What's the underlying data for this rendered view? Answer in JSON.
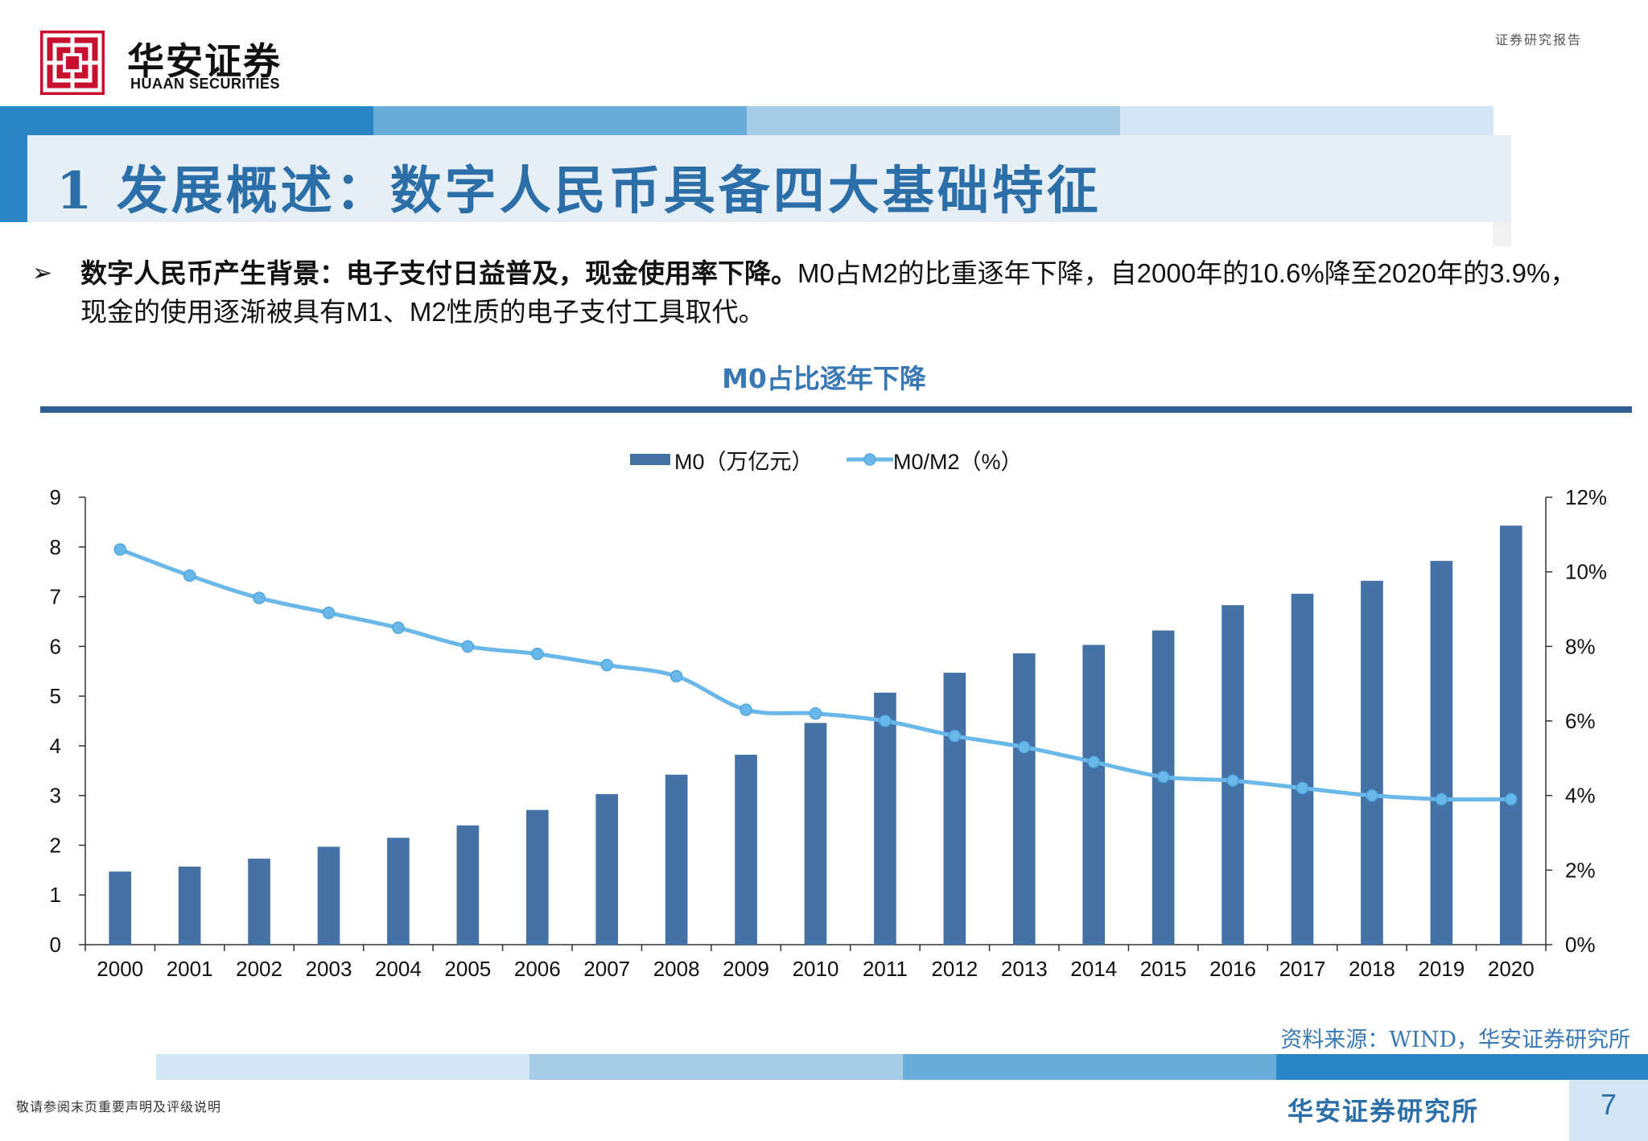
{
  "header": {
    "brand_cn": "华安证券",
    "brand_en": "HUAAN SECURITIES",
    "report_type": "证券研究报告",
    "logo_color": "#c8102e"
  },
  "slide": {
    "title": "1 发展概述：数字人民币具备四大基础特征",
    "bullet_bold": "数字人民币产生背景：电子支付日益普及，现金使用率下降。",
    "bullet_text": "M0占M2的比重逐年下降，自2000年的10.6%降至2020年的3.9%，现金的使用逐渐被具有M1、M2性质的电子支付工具取代。"
  },
  "chart_title": "M0占比逐年下降",
  "chart_data": {
    "type": "bar+line",
    "categories": [
      "2000",
      "2001",
      "2002",
      "2003",
      "2004",
      "2005",
      "2006",
      "2007",
      "2008",
      "2009",
      "2010",
      "2011",
      "2012",
      "2013",
      "2014",
      "2015",
      "2016",
      "2017",
      "2018",
      "2019",
      "2020"
    ],
    "series": [
      {
        "name": "M0（万亿元）",
        "type": "bar",
        "axis": "left",
        "color": "#4472a6",
        "values": [
          1.47,
          1.57,
          1.73,
          1.97,
          2.15,
          2.4,
          2.71,
          3.03,
          3.42,
          3.82,
          4.46,
          5.07,
          5.47,
          5.86,
          6.03,
          6.32,
          6.83,
          7.06,
          7.32,
          7.72,
          8.43
        ]
      },
      {
        "name": "M0/M2（%）",
        "type": "line",
        "axis": "right",
        "color": "#6ab8ea",
        "values": [
          10.6,
          9.9,
          9.3,
          8.9,
          8.5,
          8.0,
          7.8,
          7.5,
          7.2,
          6.3,
          6.2,
          6.0,
          5.6,
          5.3,
          4.9,
          4.5,
          4.4,
          4.2,
          4.0,
          3.9,
          3.9
        ]
      }
    ],
    "y_left": {
      "min": 0,
      "max": 9,
      "ticks": [
        "0",
        "1",
        "2",
        "3",
        "4",
        "5",
        "6",
        "7",
        "8",
        "9"
      ]
    },
    "y_right": {
      "min": 0,
      "max": 12,
      "ticks": [
        "0%",
        "2%",
        "4%",
        "6%",
        "8%",
        "10%",
        "12%"
      ]
    },
    "legend_position": "top-center",
    "grid": false
  },
  "source_note": "资料来源：WIND，华安证券研究所",
  "footer": {
    "disclaimer": "敬请参阅末页重要声明及评级说明",
    "institute": "华安证券研究所",
    "page_number": "7"
  }
}
